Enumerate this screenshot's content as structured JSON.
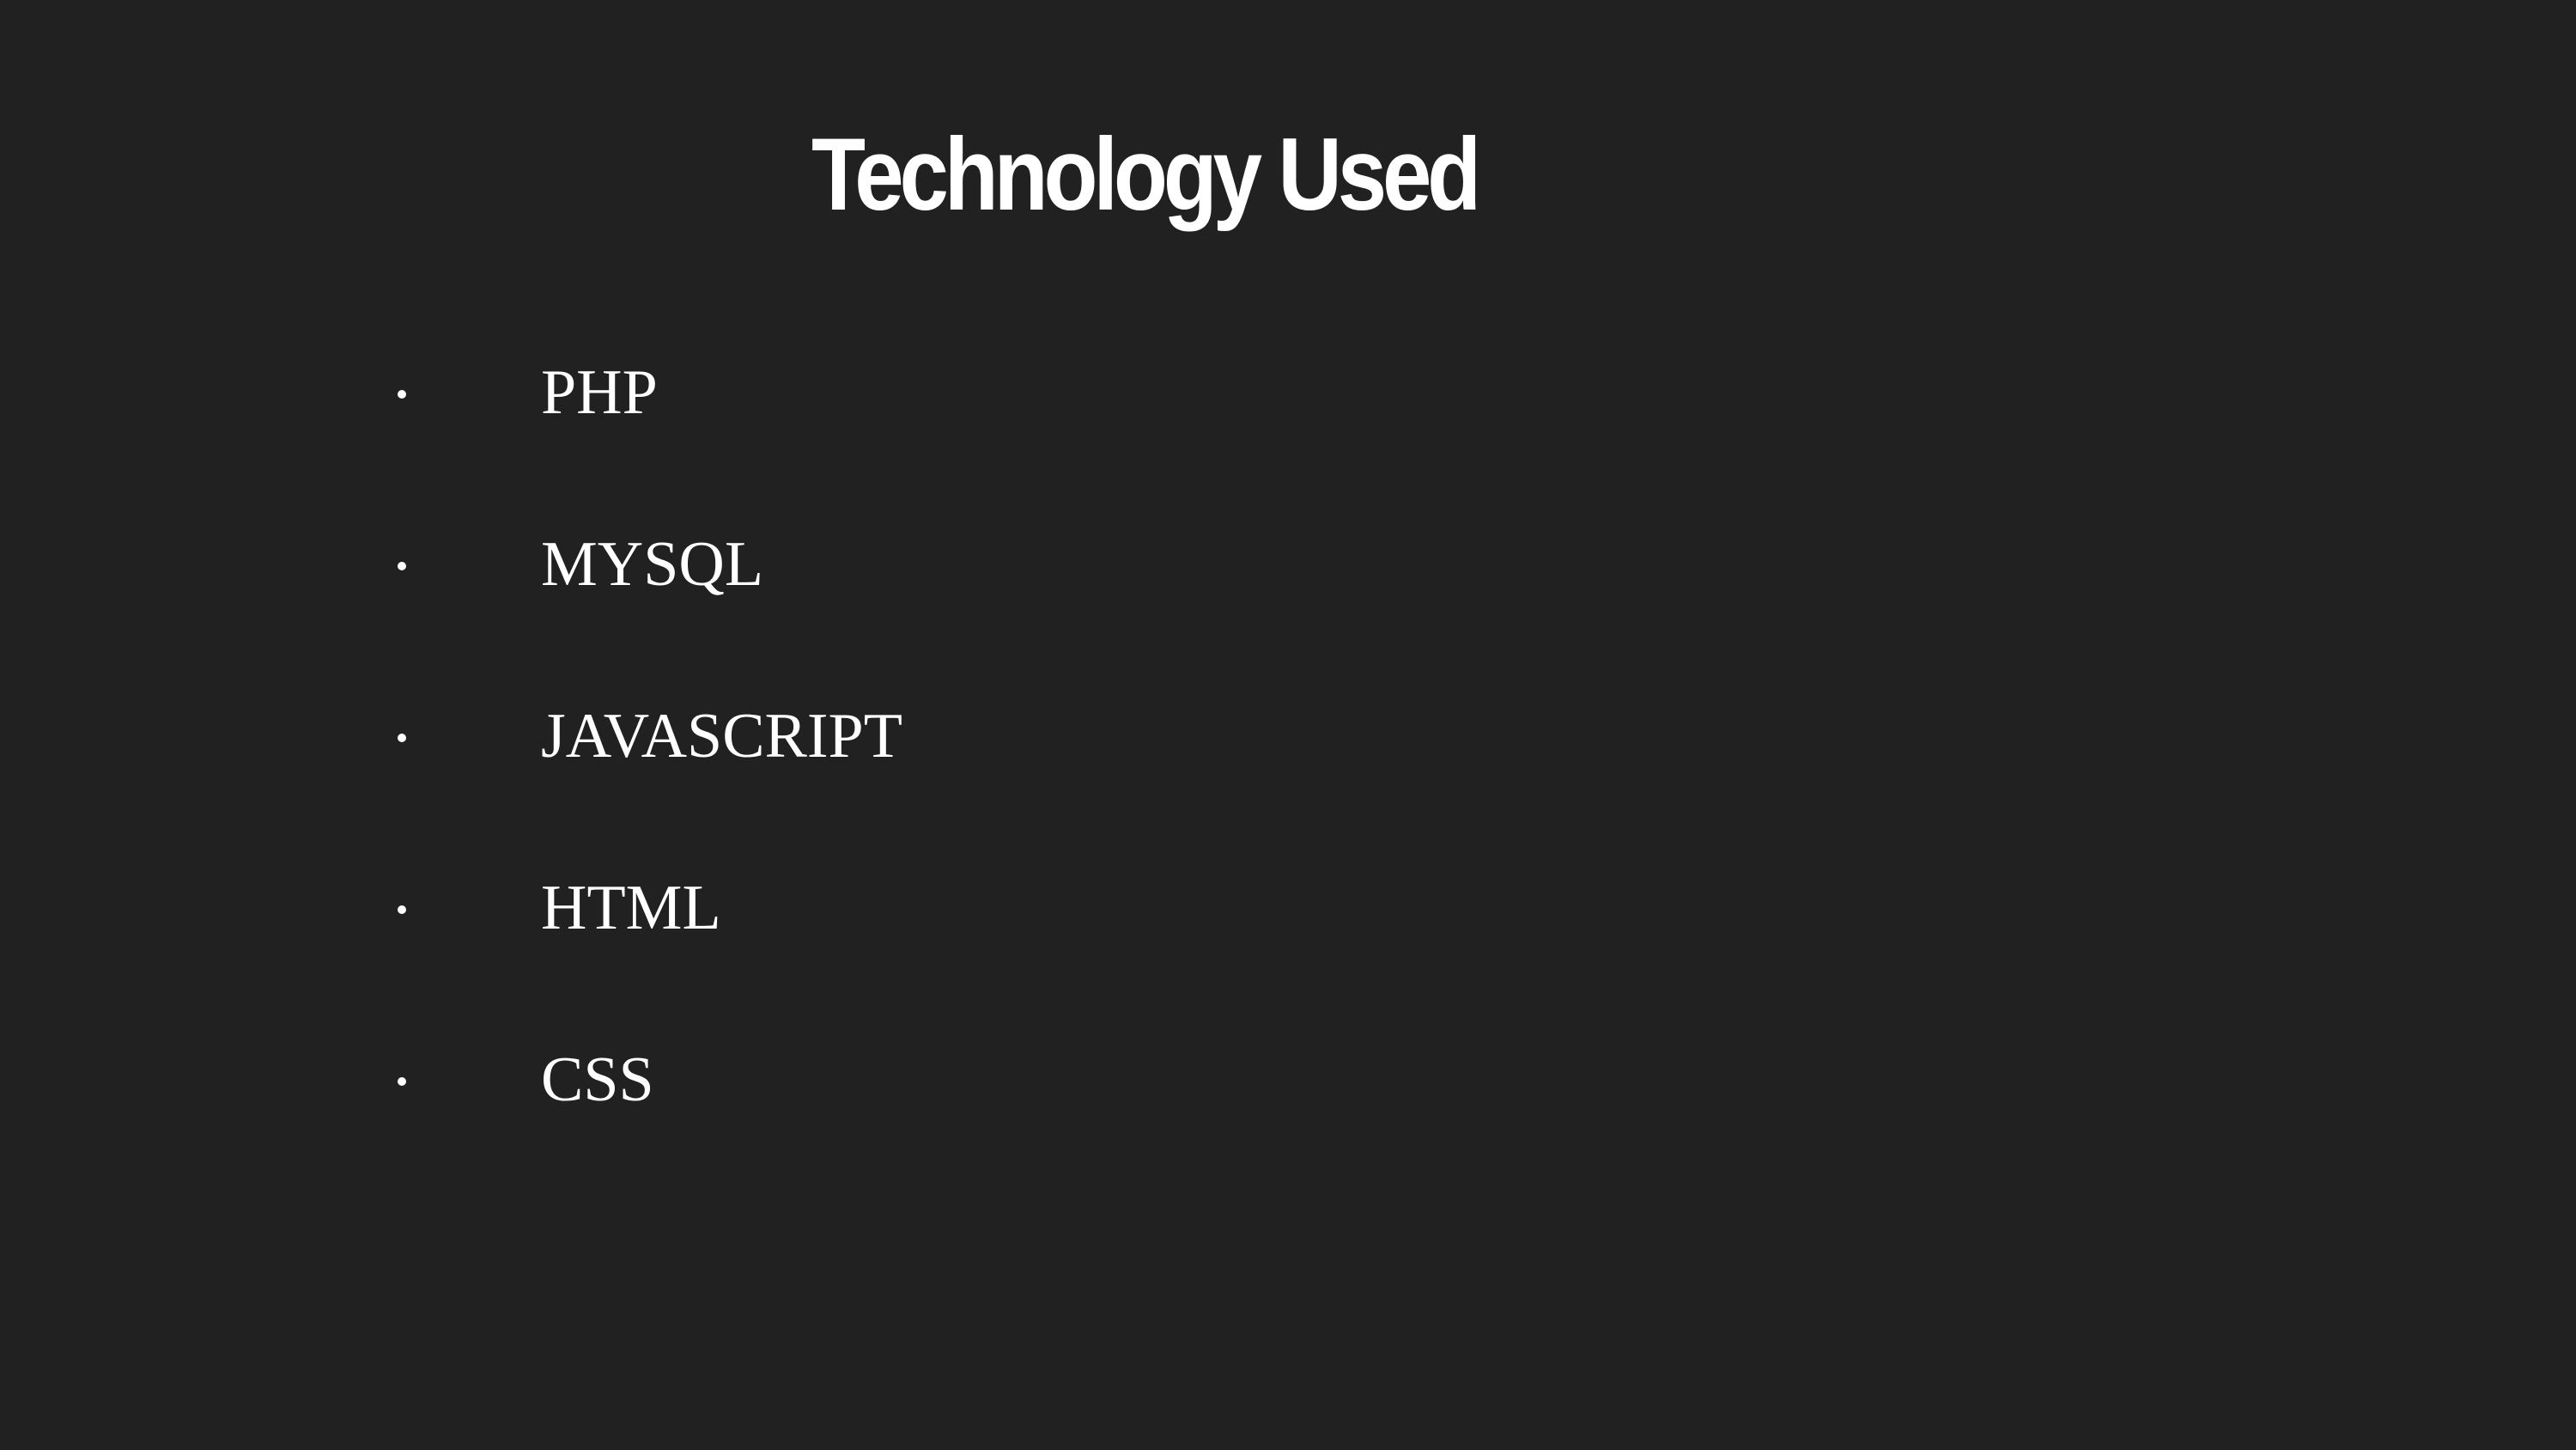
{
  "slide": {
    "title": "Technology Used",
    "items": [
      {
        "label": "PHP"
      },
      {
        "label": "MYSQL"
      },
      {
        "label": "JAVASCRIPT"
      },
      {
        "label": "HTML"
      },
      {
        "label": "CSS"
      }
    ]
  },
  "colors": {
    "background": "#212121",
    "text": "#ffffff"
  }
}
